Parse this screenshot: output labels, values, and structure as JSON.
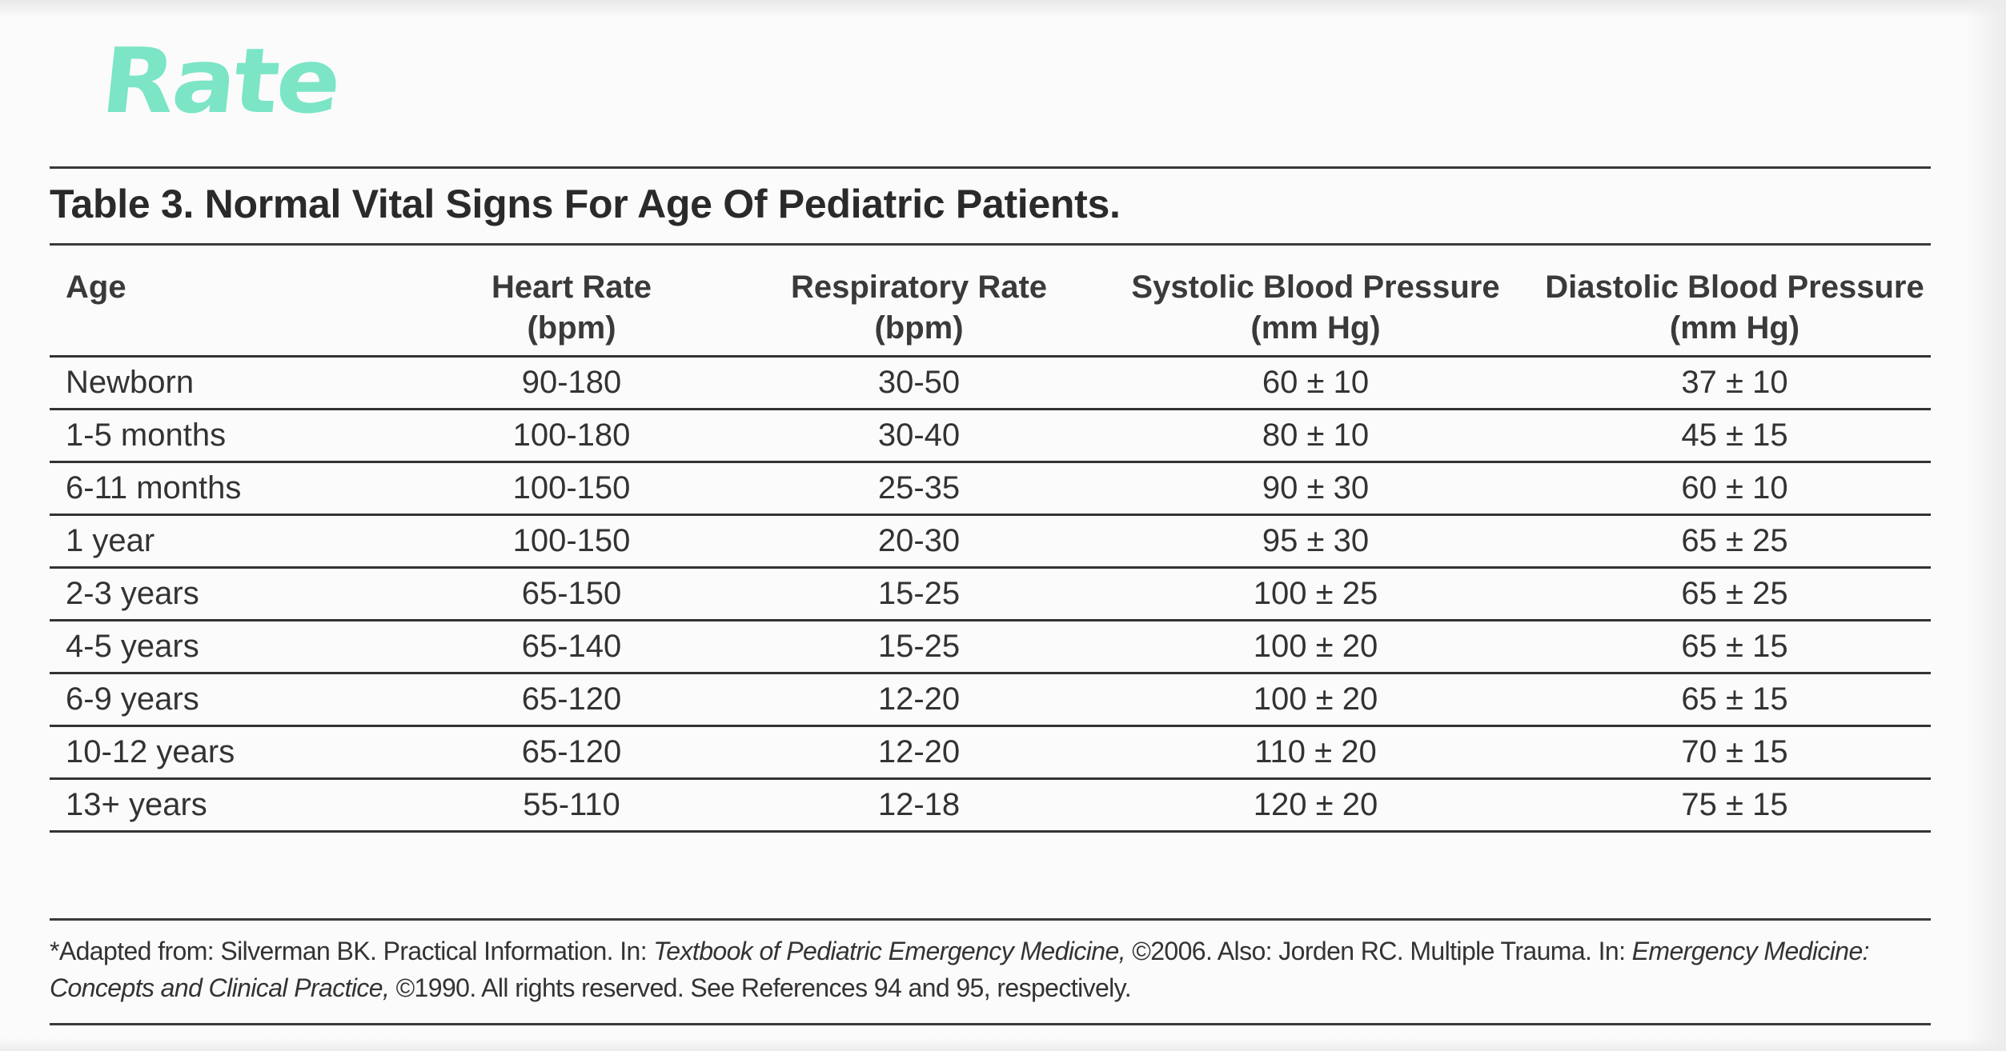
{
  "annotation": "Rate",
  "title": "Table 3. Normal Vital Signs For Age Of Pediatric Patients.",
  "table": {
    "headers": [
      {
        "line1": "Age",
        "line2": ""
      },
      {
        "line1": "Heart Rate",
        "line2": "(bpm)"
      },
      {
        "line1": "Respiratory Rate",
        "line2": "(bpm)"
      },
      {
        "line1": "Systolic Blood Pressure",
        "line2": "(mm Hg)"
      },
      {
        "line1": "Diastolic Blood Pressure",
        "line2": "(mm Hg)"
      }
    ],
    "rows": [
      [
        "Newborn",
        "90-180",
        "30-50",
        "60 ± 10",
        "37 ± 10"
      ],
      [
        "1-5 months",
        "100-180",
        "30-40",
        "80 ± 10",
        "45 ± 15"
      ],
      [
        "6-11 months",
        "100-150",
        "25-35",
        "90 ± 30",
        "60 ± 10"
      ],
      [
        "1 year",
        "100-150",
        "20-30",
        "95 ± 30",
        "65 ± 25"
      ],
      [
        "2-3 years",
        "65-150",
        "15-25",
        "100 ± 25",
        "65 ± 25"
      ],
      [
        "4-5 years",
        "65-140",
        "15-25",
        "100 ± 20",
        "65 ± 15"
      ],
      [
        "6-9 years",
        "65-120",
        "12-20",
        "100 ± 20",
        "65 ± 15"
      ],
      [
        "10-12 years",
        "65-120",
        "12-20",
        "110 ± 20",
        "70 ± 15"
      ],
      [
        "13+ years",
        "55-110",
        "12-18",
        "120 ± 20",
        "75 ± 15"
      ]
    ]
  },
  "footnote": {
    "part1": "*Adapted from: Silverman BK. Practical Information. In: ",
    "book1": "Textbook of Pediatric Emergency Medicine,",
    "part2": " ©2006. Also: Jorden RC. Multiple Trauma. In: ",
    "book2": "Emergency Medicine: Concepts and Clinical Practice,",
    "part3": " ©1990. All rights reserved. See References 94 and 95, respectively."
  },
  "colors": {
    "annotation": "#7be5c6",
    "text": "#2a2a2a",
    "rules": "#3a3a3a",
    "background": "#fbfbfb"
  }
}
